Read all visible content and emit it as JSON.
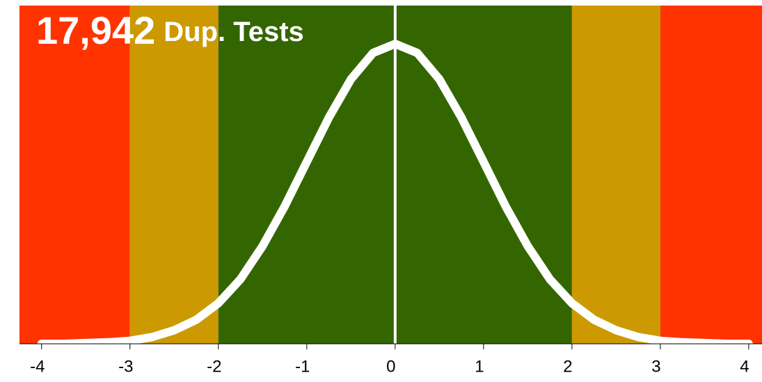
{
  "chart_data": {
    "type": "line",
    "count_label": "17,942",
    "title": "Dup. Tests",
    "x": [
      -4,
      -3.75,
      -3.5,
      -3.25,
      -3,
      -2.75,
      -2.5,
      -2.25,
      -2,
      -1.75,
      -1.5,
      -1.25,
      -1,
      -0.75,
      -0.5,
      -0.25,
      0,
      0.25,
      0.5,
      0.75,
      1,
      1.25,
      1.5,
      1.75,
      2,
      2.25,
      2.5,
      2.75,
      3,
      3.25,
      3.5,
      3.75,
      4
    ],
    "series": [
      {
        "color": "#ffffff",
        "values": [
          0.0,
          0.0,
          0.001,
          0.002,
          0.004,
          0.009,
          0.018,
          0.032,
          0.054,
          0.086,
          0.13,
          0.183,
          0.242,
          0.301,
          0.352,
          0.387,
          0.399,
          0.387,
          0.352,
          0.301,
          0.242,
          0.183,
          0.13,
          0.086,
          0.054,
          0.032,
          0.018,
          0.009,
          0.004,
          0.002,
          0.001,
          0.0,
          0.0
        ]
      }
    ],
    "bands": [
      {
        "from": -4.25,
        "to": -3,
        "color": "#ff3300"
      },
      {
        "from": -3,
        "to": -2,
        "color": "#cc9900"
      },
      {
        "from": -2,
        "to": 2,
        "color": "#336600"
      },
      {
        "from": 2,
        "to": 3,
        "color": "#cc9900"
      },
      {
        "from": 3,
        "to": 4.15,
        "color": "#ff3300"
      }
    ],
    "vline": 0,
    "xlim": [
      -4.25,
      4.15
    ],
    "ylim": [
      0,
      0.45
    ],
    "xticks": [
      -4,
      -3,
      -2,
      -1,
      0,
      1,
      2,
      3,
      4
    ]
  }
}
